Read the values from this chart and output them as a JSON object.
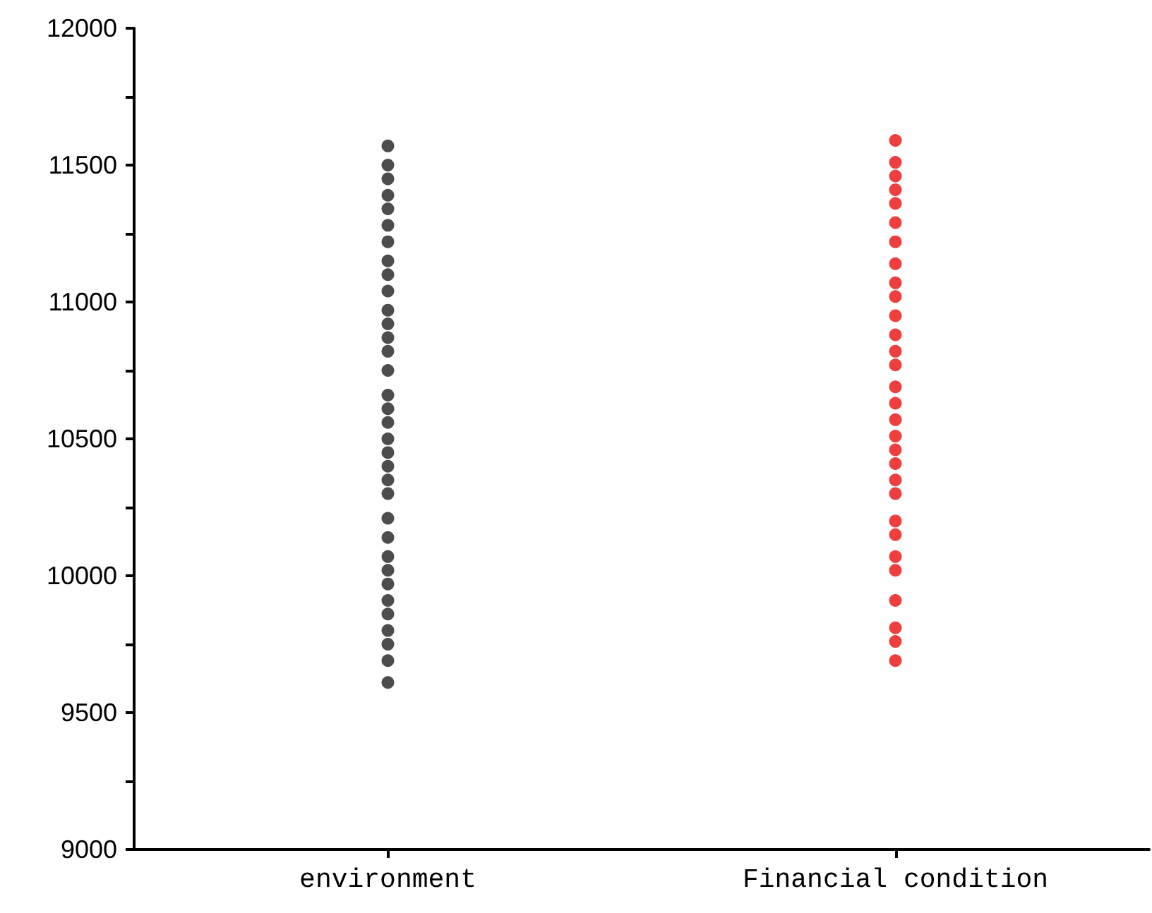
{
  "chart_data": {
    "type": "scatter",
    "marker": "circle",
    "grid": false,
    "categories": [
      "environment",
      "Financial condition"
    ],
    "ylim": [
      9000,
      12000
    ],
    "yticks": [
      9000,
      {
        "value": 9250,
        "label": null
      },
      9500,
      {
        "value": 9750,
        "label": null
      },
      10000,
      {
        "value": 10250,
        "label": null
      },
      10500,
      {
        "value": 10750,
        "label": null
      },
      11000,
      {
        "value": 11250,
        "label": null
      },
      11500,
      {
        "value": 11750,
        "label": null
      },
      12000
    ],
    "series": [
      {
        "color": "#4d4d4d",
        "x": [
          "environment",
          "environment",
          "environment",
          "environment",
          "environment",
          "environment",
          "environment",
          "environment",
          "environment",
          "environment",
          "environment",
          "environment",
          "environment",
          "environment",
          "environment",
          "environment",
          "environment",
          "environment",
          "environment",
          "environment",
          "environment",
          "environment",
          "environment",
          "environment",
          "environment",
          "environment",
          "environment",
          "environment",
          "environment",
          "environment",
          "environment",
          "environment",
          "environment",
          "environment"
        ],
        "values": [
          11570,
          11500,
          11450,
          11390,
          11340,
          11280,
          11220,
          11150,
          11100,
          11040,
          10970,
          10920,
          10870,
          10820,
          10750,
          10660,
          10610,
          10560,
          10500,
          10450,
          10400,
          10350,
          10300,
          10210,
          10140,
          10070,
          10020,
          9970,
          9910,
          9860,
          9800,
          9750,
          9690,
          9610
        ]
      },
      {
        "color": "#ee3e3e",
        "x": [
          "Financial condition",
          "Financial condition",
          "Financial condition",
          "Financial condition",
          "Financial condition",
          "Financial condition",
          "Financial condition",
          "Financial condition",
          "Financial condition",
          "Financial condition",
          "Financial condition",
          "Financial condition",
          "Financial condition",
          "Financial condition",
          "Financial condition",
          "Financial condition",
          "Financial condition",
          "Financial condition",
          "Financial condition",
          "Financial condition",
          "Financial condition",
          "Financial condition",
          "Financial condition",
          "Financial condition",
          "Financial condition",
          "Financial condition",
          "Financial condition",
          "Financial condition",
          "Financial condition",
          "Financial condition"
        ],
        "values": [
          11590,
          11510,
          11460,
          11410,
          11360,
          11290,
          11220,
          11140,
          11070,
          11020,
          10950,
          10880,
          10820,
          10770,
          10690,
          10630,
          10570,
          10510,
          10460,
          10410,
          10350,
          10300,
          10200,
          10150,
          10070,
          10020,
          9910,
          9810,
          9760,
          9690
        ]
      }
    ]
  }
}
